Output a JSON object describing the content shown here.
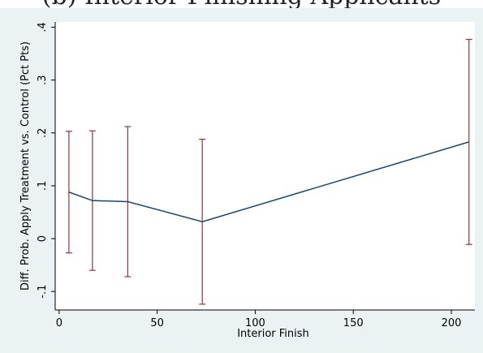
{
  "header": {
    "caption": "(b) Interior Finishing Applicants"
  },
  "colors": {
    "line": "#1a476f",
    "ci": "#90353b",
    "plot_bg": "#ffffff",
    "graph_bg": "#eaf2f3"
  },
  "chart_data": {
    "type": "line",
    "xlabel": "Interior Finish",
    "ylabel": "Diff. Prob. Apply Treatment vs. Control (Pct Pts)",
    "xlim": [
      -2,
      212
    ],
    "ylim": [
      -0.135,
      0.41
    ],
    "xticks": [
      0,
      50,
      100,
      150,
      200
    ],
    "yticks": [
      -0.1,
      0,
      0.1,
      0.2,
      0.3,
      0.4
    ],
    "xtick_labels": [
      "0",
      "50",
      "100",
      "150",
      "200"
    ],
    "ytick_labels": [
      "-.1",
      "0",
      ".1",
      ".2",
      ".3",
      ".4"
    ],
    "grid": false,
    "series": [
      {
        "x": [
          5,
          17,
          35,
          73,
          209
        ],
        "y": [
          0.088,
          0.072,
          0.07,
          0.032,
          0.183
        ],
        "ci_low": [
          -0.027,
          -0.06,
          -0.072,
          -0.124,
          -0.011
        ],
        "ci_high": [
          0.203,
          0.204,
          0.212,
          0.188,
          0.377
        ]
      }
    ]
  }
}
